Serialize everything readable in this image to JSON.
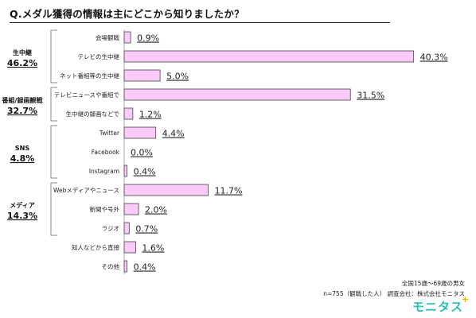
{
  "title": "Q.メダル獲得の情報は主にどこから知りましたか？",
  "footer": {
    "line1": "全国15歳～69歳の男女",
    "line2": "n=755（観戦した人） 調査会社：株式会社モニタス",
    "logo": "モニタス",
    "logo_mark": "+"
  },
  "colors": {
    "bar_fill": "#fccafa",
    "bar_stroke": "#444444",
    "bracket": "#888888",
    "value_text": "#222222",
    "logo": "#2bbfb0"
  },
  "chart_data": {
    "type": "bar",
    "orientation": "horizontal",
    "title": "Q.メダル獲得の情報は主にどこから知りましたか？",
    "unit": "%",
    "xlim": [
      0,
      43
    ],
    "grid": false,
    "legend": "none",
    "categories": [
      "会場観戦",
      "テレビの生中継",
      "ネット番組等の生中継",
      "テレビニュースや番組で",
      "生中継の録画などで",
      "Twitter",
      "Facebook",
      "Instagram",
      "Webメディアやニュース",
      "新聞や号外",
      "ラジオ",
      "知人などから直接",
      "その他"
    ],
    "values": [
      0.9,
      40.3,
      5.0,
      31.5,
      1.2,
      4.4,
      0.0,
      0.4,
      11.7,
      2.0,
      0.7,
      1.6,
      0.4
    ],
    "value_labels": [
      "0.9%",
      "40.3%",
      "5.0%",
      "31.5%",
      "1.2%",
      "4.4%",
      "0.0%",
      "0.4%",
      "11.7%",
      "2.0%",
      "0.7%",
      "1.6%",
      "0.4%"
    ],
    "groups": [
      {
        "name": "生中継",
        "total": "46.2%",
        "items": [
          0,
          1,
          2
        ]
      },
      {
        "name": "番組/録画観戦",
        "total": "32.7%",
        "items": [
          3,
          4
        ]
      },
      {
        "name": "SNS",
        "total": "4.8%",
        "items": [
          5,
          6,
          7
        ]
      },
      {
        "name": "メディア",
        "total": "14.3%",
        "items": [
          8,
          9,
          10
        ]
      }
    ]
  }
}
